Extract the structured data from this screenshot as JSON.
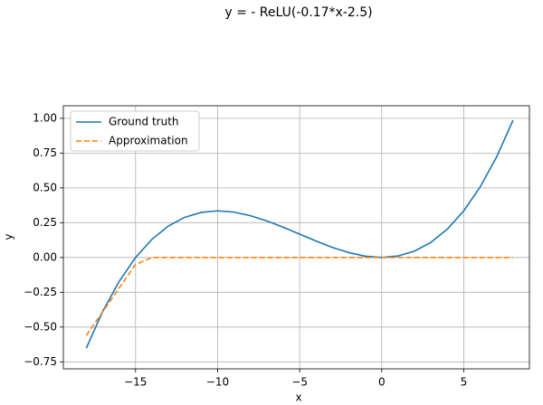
{
  "chart_data": {
    "type": "line",
    "title": "y = - ReLU(-0.17*x-2.5)",
    "x_label": "x",
    "y_label": "y",
    "x": [
      -18,
      -17,
      -16,
      -15,
      -14,
      -13,
      -12,
      -11,
      -10,
      -9,
      -8,
      -7,
      -6,
      -5,
      -4,
      -3,
      -2,
      -1,
      0,
      1,
      2,
      3,
      4,
      5,
      6,
      7,
      8
    ],
    "series": [
      {
        "name": "Ground truth",
        "color": "#1f77b4",
        "dash": "solid",
        "values": [
          -0.651,
          -0.387,
          -0.172,
          0,
          0.131,
          0.226,
          0.289,
          0.324,
          0.335,
          0.326,
          0.3,
          0.263,
          0.217,
          0.168,
          0.118,
          0.072,
          0.035,
          0.009,
          0,
          0.011,
          0.046,
          0.109,
          0.204,
          0.335,
          0.507,
          0.722,
          0.986
        ]
      },
      {
        "name": "Approximation",
        "color": "#ff7f0e",
        "dash": "dashed",
        "values": [
          -0.56,
          -0.39,
          -0.22,
          -0.05,
          0,
          0,
          0,
          0,
          0,
          0,
          0,
          0,
          0,
          0,
          0,
          0,
          0,
          0,
          0,
          0,
          0,
          0,
          0,
          0,
          0,
          0,
          0
        ]
      }
    ],
    "xlim": [
      -19.4,
      9.0
    ],
    "ylim": [
      -0.8,
      1.09
    ],
    "xticks": [
      {
        "value": -15,
        "label": "−15"
      },
      {
        "value": -10,
        "label": "−10"
      },
      {
        "value": -5,
        "label": "−5"
      },
      0,
      5
    ],
    "yticks": [
      {
        "value": -0.75,
        "label": "−0.75"
      },
      {
        "value": -0.5,
        "label": "−0.50"
      },
      {
        "value": -0.25,
        "label": "−0.25"
      },
      {
        "value": 0,
        "label": "0.00"
      },
      {
        "value": 0.25,
        "label": "0.25"
      },
      {
        "value": 0.5,
        "label": "0.50"
      },
      {
        "value": 0.75,
        "label": "0.75"
      },
      {
        "value": 1,
        "label": "1.00"
      }
    ],
    "grid": true,
    "legend": "upper left"
  }
}
